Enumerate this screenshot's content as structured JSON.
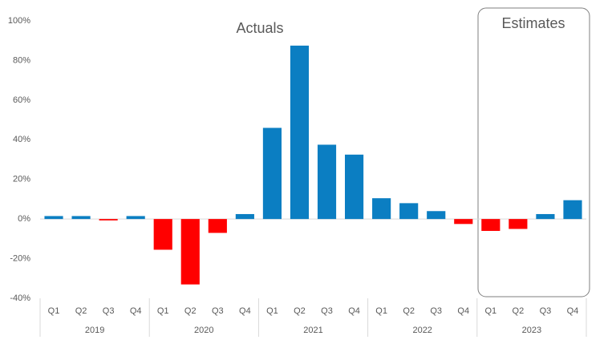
{
  "chart_data": {
    "type": "bar",
    "annotations": [
      "Actuals",
      "Estimates"
    ],
    "categories": [
      "Q1",
      "Q2",
      "Q3",
      "Q4",
      "Q1",
      "Q2",
      "Q3",
      "Q4",
      "Q1",
      "Q2",
      "Q3",
      "Q4",
      "Q1",
      "Q2",
      "Q3",
      "Q4",
      "Q1",
      "Q2",
      "Q3",
      "Q4"
    ],
    "groups": [
      "2019",
      "2020",
      "2021",
      "2022",
      "2023"
    ],
    "values": [
      1.5,
      1.5,
      -0.7,
      1.5,
      -15.5,
      -33,
      -7,
      2.5,
      46,
      87.5,
      37.5,
      32.5,
      10.5,
      8,
      4,
      -2.5,
      -6,
      -5,
      2.5,
      9.5
    ],
    "positive_color": "#0b7ec2",
    "negative_color": "#ff0000",
    "ylim": [
      -40,
      100
    ],
    "yticks": [
      {
        "value": -40,
        "label": "-40%"
      },
      {
        "value": -20,
        "label": "-20%"
      },
      {
        "value": 0,
        "label": "0%"
      },
      {
        "value": 20,
        "label": "20%"
      },
      {
        "value": 40,
        "label": "40%"
      },
      {
        "value": 60,
        "label": "60%"
      },
      {
        "value": 80,
        "label": "80%"
      },
      {
        "value": 100,
        "label": "100%"
      }
    ],
    "grid": false
  }
}
